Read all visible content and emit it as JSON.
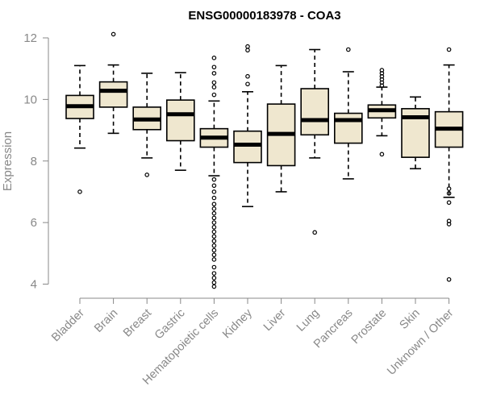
{
  "chart_data": {
    "type": "boxplot",
    "title": "ENSG00000183978 - COA3",
    "xlabel": "",
    "ylabel": "Expression",
    "ylim": [
      3.9,
      12.2
    ],
    "yticks": [
      4,
      6,
      8,
      10,
      12
    ],
    "box_fill": "#efe7cf",
    "stroke": "#000000",
    "axis_color": "#888888",
    "categories": [
      "Bladder",
      "Brain",
      "Breast",
      "Gastric",
      "Hematopoietic cells",
      "Kidney",
      "Liver",
      "Lung",
      "Pancreas",
      "Prostate",
      "Skin",
      "Unknown / Other"
    ],
    "boxes": [
      {
        "category": "Bladder",
        "whisker_low": 8.42,
        "q1": 9.38,
        "median": 9.78,
        "q3": 10.13,
        "whisker_high": 11.1,
        "outliers": [
          7.0
        ]
      },
      {
        "category": "Brain",
        "whisker_low": 8.9,
        "q1": 9.75,
        "median": 10.28,
        "q3": 10.57,
        "whisker_high": 11.12,
        "outliers": [
          12.12
        ]
      },
      {
        "category": "Breast",
        "whisker_low": 8.1,
        "q1": 9.02,
        "median": 9.35,
        "q3": 9.75,
        "whisker_high": 10.85,
        "outliers": [
          7.55
        ]
      },
      {
        "category": "Gastric",
        "whisker_low": 7.7,
        "q1": 8.66,
        "median": 9.52,
        "q3": 9.98,
        "whisker_high": 10.87,
        "outliers": []
      },
      {
        "category": "Hematopoietic cells",
        "whisker_low": 7.52,
        "q1": 8.45,
        "median": 8.76,
        "q3": 9.05,
        "whisker_high": 9.95,
        "outliers": [
          11.35,
          11.05,
          10.85,
          10.55,
          10.4,
          10.15,
          7.4,
          7.2,
          7.0,
          6.8,
          6.6,
          6.45,
          6.3,
          6.15,
          6.0,
          5.85,
          5.7,
          5.55,
          5.4,
          5.25,
          5.1,
          4.95,
          4.8,
          4.55,
          4.35,
          4.2,
          4.05,
          3.92
        ]
      },
      {
        "category": "Kidney",
        "whisker_low": 6.52,
        "q1": 7.95,
        "median": 8.53,
        "q3": 8.97,
        "whisker_high": 10.25,
        "outliers": [
          11.72,
          11.6,
          10.75,
          10.5
        ]
      },
      {
        "category": "Liver",
        "whisker_low": 7.0,
        "q1": 7.85,
        "median": 8.88,
        "q3": 9.85,
        "whisker_high": 11.1,
        "outliers": []
      },
      {
        "category": "Lung",
        "whisker_low": 8.1,
        "q1": 8.85,
        "median": 9.33,
        "q3": 10.35,
        "whisker_high": 11.62,
        "outliers": [
          5.68
        ]
      },
      {
        "category": "Pancreas",
        "whisker_low": 7.42,
        "q1": 8.58,
        "median": 9.33,
        "q3": 9.55,
        "whisker_high": 10.9,
        "outliers": [
          11.62
        ]
      },
      {
        "category": "Prostate",
        "whisker_low": 8.82,
        "q1": 9.4,
        "median": 9.65,
        "q3": 9.82,
        "whisker_high": 10.4,
        "outliers": [
          10.95,
          10.85,
          10.75,
          10.65,
          10.55,
          10.45,
          8.22
        ]
      },
      {
        "category": "Skin",
        "whisker_low": 7.75,
        "q1": 8.12,
        "median": 9.42,
        "q3": 9.7,
        "whisker_high": 10.08,
        "outliers": []
      },
      {
        "category": "Unknown / Other",
        "whisker_low": 6.82,
        "q1": 8.45,
        "median": 9.05,
        "q3": 9.6,
        "whisker_high": 11.12,
        "outliers": [
          11.62,
          7.1,
          6.95,
          6.65,
          6.05,
          5.95,
          4.15
        ]
      }
    ]
  }
}
